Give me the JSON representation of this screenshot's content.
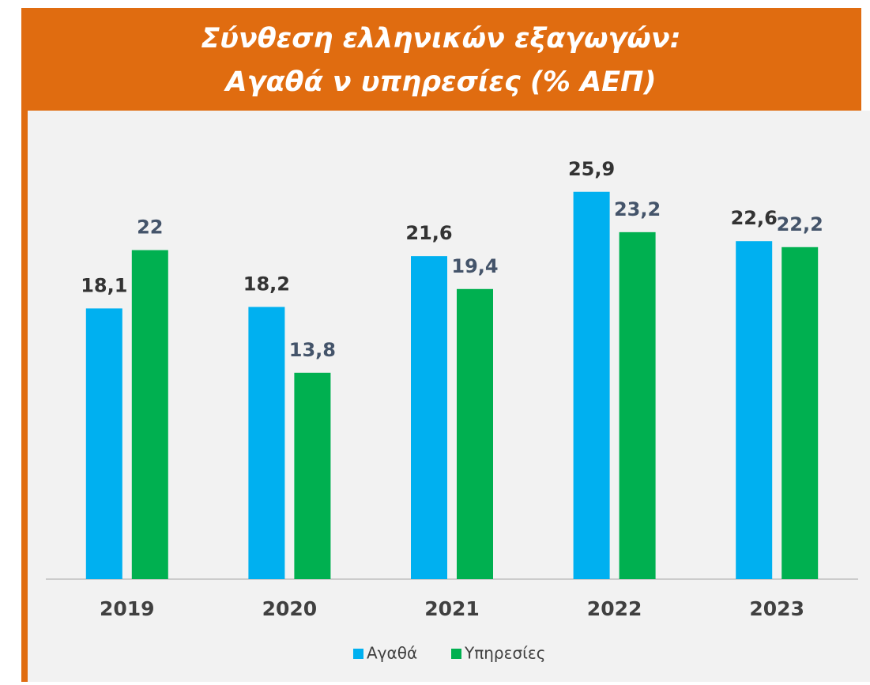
{
  "chart_data": {
    "type": "bar",
    "title": [
      "Σύνθεση ελληνικών εξαγωγών:",
      "Αγαθά ν υπηρεσίες (% ΑΕΠ)"
    ],
    "categories": [
      "2019",
      "2020",
      "2021",
      "2022",
      "2023"
    ],
    "series": [
      {
        "name": "Αγαθά",
        "color": "#00b0f0",
        "values": [
          18.1,
          18.2,
          21.6,
          25.9,
          22.6
        ],
        "value_labels": [
          "18,1",
          "18,2",
          "21,6",
          "25,9",
          "22,6"
        ]
      },
      {
        "name": "Υπηρεσίες",
        "color": "#00b050",
        "values": [
          22,
          13.8,
          19.4,
          23.2,
          22.2
        ],
        "value_labels": [
          "22",
          "13,8",
          "19,4",
          "23,2",
          "22,2"
        ]
      }
    ],
    "ylim": [
      0,
      28
    ],
    "legend": "bottom"
  }
}
